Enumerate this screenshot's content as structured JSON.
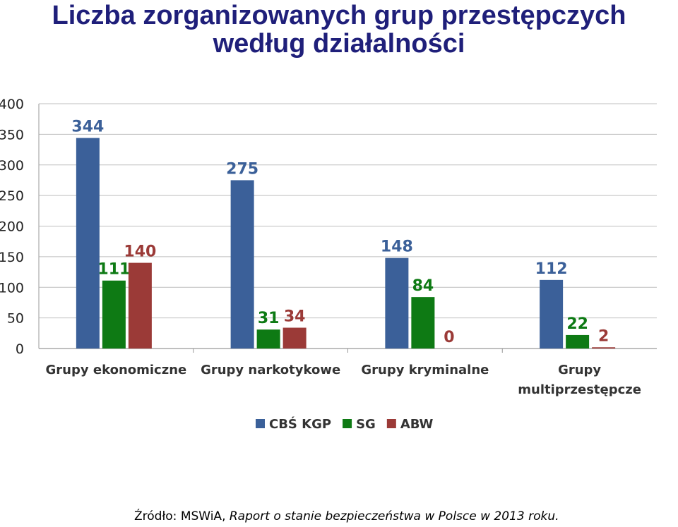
{
  "chart_data": {
    "type": "bar",
    "title": "Liczba zorganizowanych grup przestępczych",
    "subtitle": "według działalności",
    "categories": [
      [
        "Grupy ekonomiczne"
      ],
      [
        "Grupy narkotykowe"
      ],
      [
        "Grupy kryminalne"
      ],
      [
        "Grupy",
        "multiprzestępcze"
      ]
    ],
    "series": [
      {
        "name": "CBŚ KGP",
        "color": "#3b6099",
        "values": [
          344,
          275,
          148,
          112
        ]
      },
      {
        "name": "SG",
        "color": "#0e7a14",
        "values": [
          111,
          31,
          84,
          22
        ]
      },
      {
        "name": "ABW",
        "color": "#9b3a37",
        "values": [
          140,
          34,
          0,
          2
        ]
      }
    ],
    "ylim": [
      0,
      400
    ],
    "yticks": [
      0,
      50,
      100,
      150,
      200,
      250,
      300,
      350,
      400
    ],
    "grid": true,
    "legend": "bottom"
  },
  "source": {
    "label": "Źródło: MSWiA, ",
    "text": "Raport o stanie bezpieczeństwa w Polsce w 2013 roku."
  }
}
